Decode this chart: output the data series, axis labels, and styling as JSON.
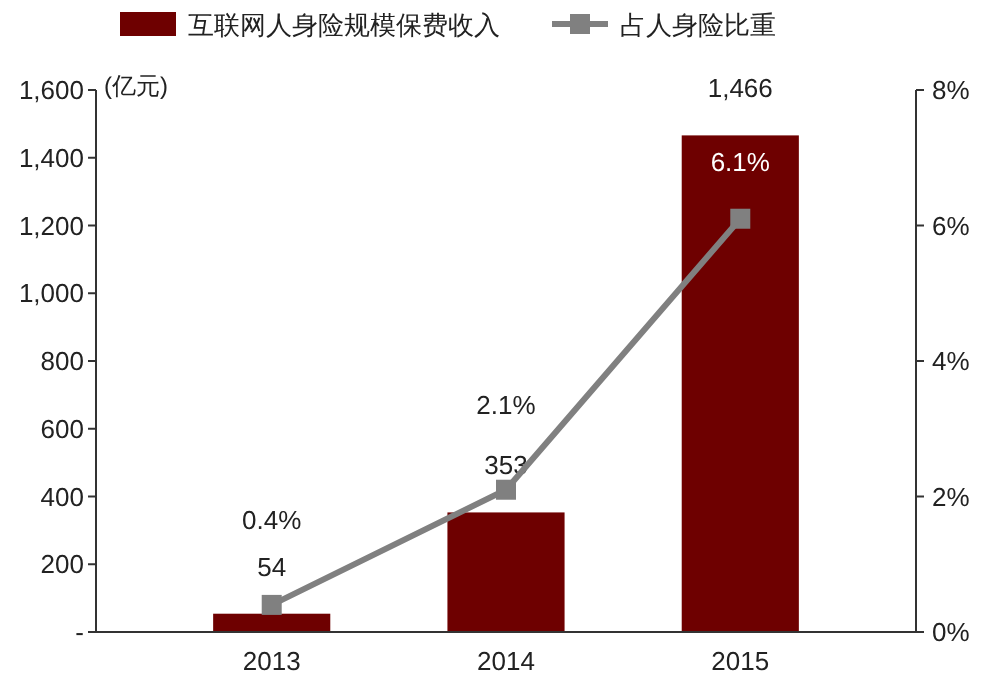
{
  "chart_data": {
    "type": "bar",
    "categories": [
      "2013",
      "2014",
      "2015"
    ],
    "ylabel": "(亿元)",
    "series": [
      {
        "name": "互联网人身险规模保费收入",
        "color": "#6e0000",
        "values": [
          54,
          353,
          1466
        ],
        "value_labels": [
          "54",
          "353",
          "1,466"
        ]
      },
      {
        "name": "占人身险比重",
        "type": "line",
        "axis": "y2",
        "color": "#808080",
        "values": [
          0.4,
          2.1,
          6.1
        ],
        "value_labels": [
          "0.4%",
          "2.1%",
          "6.1%"
        ]
      }
    ],
    "ylim": [
      0,
      1600
    ],
    "yticks": [
      {
        "value": 0,
        "label": "-"
      },
      {
        "value": 200,
        "label": "200"
      },
      {
        "value": 400,
        "label": "400"
      },
      {
        "value": 600,
        "label": "600"
      },
      {
        "value": 800,
        "label": "800"
      },
      {
        "value": 1000,
        "label": "1,000"
      },
      {
        "value": 1200,
        "label": "1,200"
      },
      {
        "value": 1400,
        "label": "1,400"
      },
      {
        "value": 1600,
        "label": "1,600"
      }
    ],
    "y2lim": [
      0,
      8
    ],
    "y2ticks": [
      {
        "value": 0,
        "label": "0%"
      },
      {
        "value": 2,
        "label": "2%"
      },
      {
        "value": 4,
        "label": "4%"
      },
      {
        "value": 6,
        "label": "6%"
      },
      {
        "value": 8,
        "label": "8%"
      }
    ],
    "legend": "top",
    "marker": "square",
    "line_style": "solid",
    "grid": false
  }
}
